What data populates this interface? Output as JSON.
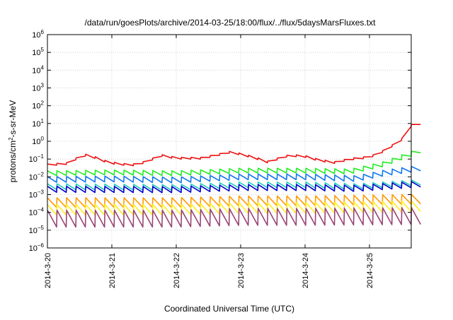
{
  "chart_data": {
    "type": "line",
    "title": "/data/run/goesPlots/archive/2014-03-25/18:00/flux/../flux/5daysMarsFluxes.txt",
    "xlabel": "Coordinated Universal Time (UTC)",
    "ylabel": "protons/cm²-s-sr-MeV",
    "ylabel_parts": {
      "pre": "protons/cm",
      "sup": "2",
      "post": "-s-sr-MeV"
    },
    "yscale": "log",
    "ylim_exp": [
      -6,
      6
    ],
    "y_tick_exponents": [
      -6,
      -5,
      -4,
      -3,
      -2,
      -1,
      0,
      1,
      2,
      3,
      4,
      5,
      6
    ],
    "xlim_days": [
      0,
      5.8
    ],
    "x_tick_labels": [
      "2014-3-20",
      "2014-3-21",
      "2014-3-22",
      "2014-3-23",
      "2014-3-24",
      "2014-3-25"
    ],
    "grid": true,
    "series": [
      {
        "color": "#ee1111",
        "log_baseline": [
          [
            0,
            -1.33
          ],
          [
            0.3,
            -1.25
          ],
          [
            0.5,
            -0.88
          ],
          [
            0.62,
            -0.75
          ],
          [
            0.95,
            -1.2
          ],
          [
            1.3,
            -1.35
          ],
          [
            1.55,
            -1.15
          ],
          [
            1.75,
            -0.78
          ],
          [
            2.0,
            -0.95
          ],
          [
            2.4,
            -0.95
          ],
          [
            2.6,
            -0.8
          ],
          [
            2.85,
            -0.6
          ],
          [
            3.2,
            -0.9
          ],
          [
            3.45,
            -1.2
          ],
          [
            3.65,
            -0.85
          ],
          [
            3.95,
            -0.8
          ],
          [
            4.2,
            -1.05
          ],
          [
            4.45,
            -1.2
          ],
          [
            4.7,
            -1.0
          ],
          [
            5.0,
            -0.9
          ],
          [
            5.25,
            -0.5
          ],
          [
            5.5,
            0.1
          ],
          [
            5.65,
            0.9
          ],
          [
            5.8,
            1.0
          ]
        ],
        "amplitude": 0.1,
        "teeth_per_day": 6.8
      },
      {
        "color": "#22ee22",
        "log_baseline": [
          [
            0,
            -1.8
          ],
          [
            1.0,
            -1.75
          ],
          [
            2.0,
            -1.8
          ],
          [
            3.0,
            -1.65
          ],
          [
            4.0,
            -1.65
          ],
          [
            4.7,
            -1.7
          ],
          [
            5.2,
            -1.3
          ],
          [
            5.5,
            -0.9
          ],
          [
            5.8,
            -0.5
          ]
        ],
        "amplitude": 0.27,
        "teeth_per_day": 6.8
      },
      {
        "color": "#1177ee",
        "log_baseline": [
          [
            0,
            -2.15
          ],
          [
            1.0,
            -2.12
          ],
          [
            2.0,
            -2.18
          ],
          [
            3.0,
            -2.0
          ],
          [
            4.0,
            -2.0
          ],
          [
            4.8,
            -2.1
          ],
          [
            5.2,
            -1.8
          ],
          [
            5.8,
            -1.5
          ]
        ],
        "amplitude": 0.32,
        "teeth_per_day": 6.8
      },
      {
        "color": "#22ccbb",
        "log_baseline": [
          [
            0,
            -2.55
          ],
          [
            2.0,
            -2.6
          ],
          [
            3.0,
            -2.45
          ],
          [
            4.0,
            -2.45
          ],
          [
            4.8,
            -2.55
          ],
          [
            5.8,
            -2.3
          ]
        ],
        "amplitude": 0.32,
        "teeth_per_day": 6.8
      },
      {
        "color": "#0000cc",
        "log_baseline": [
          [
            0,
            -2.7
          ],
          [
            2.0,
            -2.72
          ],
          [
            3.0,
            -2.6
          ],
          [
            4.0,
            -2.6
          ],
          [
            4.8,
            -2.65
          ],
          [
            5.8,
            -2.4
          ]
        ],
        "amplitude": 0.34,
        "teeth_per_day": 6.8
      },
      {
        "color": "#ff9900",
        "log_baseline": [
          [
            0,
            -3.45
          ],
          [
            2.0,
            -3.45
          ],
          [
            3.0,
            -3.35
          ],
          [
            4.0,
            -3.35
          ],
          [
            5.8,
            -3.25
          ]
        ],
        "amplitude": 0.55,
        "teeth_per_day": 6.8
      },
      {
        "color": "#ffee22",
        "log_baseline": [
          [
            0,
            -3.85
          ],
          [
            2.0,
            -3.85
          ],
          [
            3.0,
            -3.75
          ],
          [
            4.0,
            -3.75
          ],
          [
            5.8,
            -3.65
          ]
        ],
        "amplitude": 0.6,
        "teeth_per_day": 6.8
      },
      {
        "color": "#994477",
        "log_baseline": [
          [
            0,
            -4.35
          ],
          [
            2.0,
            -4.35
          ],
          [
            3.0,
            -4.25
          ],
          [
            4.0,
            -4.25
          ],
          [
            5.8,
            -4.2
          ]
        ],
        "amplitude": 0.95,
        "teeth_per_day": 6.8
      }
    ]
  }
}
